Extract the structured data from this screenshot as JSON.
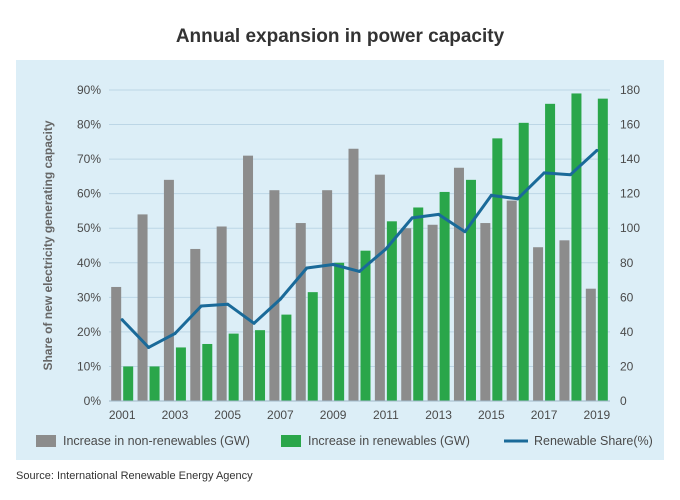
{
  "chart_data": {
    "type": "bar",
    "title": "Annual expansion in power capacity",
    "source": "Source: International Renewable Energy Agency",
    "x": [
      2001,
      2002,
      2003,
      2004,
      2005,
      2006,
      2007,
      2008,
      2009,
      2010,
      2011,
      2012,
      2013,
      2014,
      2015,
      2016,
      2017,
      2018,
      2019
    ],
    "x_tick_labels": [
      "2001",
      "2003",
      "2005",
      "2007",
      "2009",
      "2011",
      "2013",
      "2015",
      "2017",
      "2019"
    ],
    "y_left": {
      "label": "Share of new electricity generating capacity",
      "ticks": [
        "0%",
        "10%",
        "20%",
        "30%",
        "40%",
        "50%",
        "60%",
        "70%",
        "80%",
        "90%"
      ],
      "lim": [
        0,
        90
      ]
    },
    "y_right": {
      "ticks": [
        "0",
        "20",
        "40",
        "60",
        "80",
        "100",
        "120",
        "140",
        "160",
        "180"
      ],
      "lim": [
        0,
        180
      ]
    },
    "grid": true,
    "legend_position": "bottom",
    "series": [
      {
        "name": "Increase in non-renewables (GW)",
        "type": "bar",
        "axis": "right",
        "color": "#8c8c8c",
        "values": [
          66,
          108,
          128,
          88,
          101,
          142,
          122,
          103,
          122,
          146,
          131,
          100,
          102,
          135,
          103,
          116,
          89,
          93,
          65
        ]
      },
      {
        "name": "Increase in renewables (GW)",
        "type": "bar",
        "axis": "right",
        "color": "#2aa64a",
        "values": [
          20,
          20,
          31,
          33,
          39,
          41,
          50,
          63,
          80,
          87,
          104,
          112,
          121,
          128,
          152,
          161,
          172,
          178,
          175
        ]
      },
      {
        "name": "Renewable Share(%)",
        "type": "line",
        "axis": "left",
        "color": "#1a6a99",
        "values": [
          23.5,
          15.5,
          19.5,
          27.5,
          28,
          22.5,
          29.5,
          38.5,
          39.5,
          37.5,
          44,
          53,
          54,
          49,
          59.5,
          58.5,
          66,
          65.5,
          72.5
        ]
      }
    ]
  }
}
